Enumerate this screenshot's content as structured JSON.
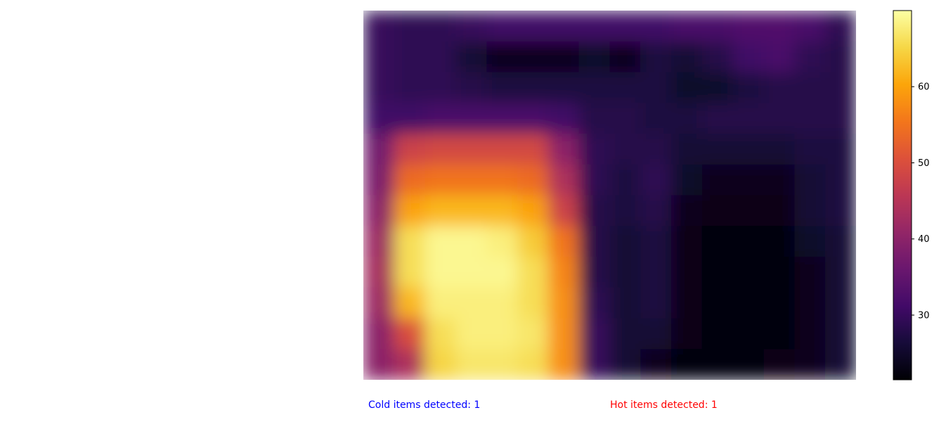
{
  "chart_data": {
    "type": "heatmap",
    "title": "",
    "xlabel": "",
    "ylabel": "",
    "colormap": "inferno",
    "value_range": [
      21.5,
      70
    ],
    "colorbar": {
      "ticks": [
        30,
        40,
        50,
        60
      ],
      "tick_labels": [
        "30",
        "40",
        "50",
        "60"
      ]
    },
    "grid": false,
    "axes_visible": false,
    "rows": 12,
    "cols": 16,
    "values": [
      [
        30,
        29,
        29,
        30,
        31,
        31,
        31,
        31,
        31,
        31,
        32,
        32,
        33,
        33,
        32,
        29
      ],
      [
        30,
        29,
        29,
        26,
        24,
        24,
        24,
        25,
        24,
        27,
        26,
        28,
        31,
        32,
        29,
        28
      ],
      [
        30,
        29,
        29,
        28,
        27,
        27,
        27,
        27,
        27,
        27,
        25,
        25,
        27,
        28,
        28,
        28
      ],
      [
        31,
        31,
        32,
        32,
        32,
        32,
        31,
        28,
        28,
        27,
        27,
        28,
        28,
        28,
        28,
        28
      ],
      [
        37,
        48,
        49,
        49,
        49,
        49,
        40,
        29,
        28,
        28,
        26,
        26,
        26,
        26,
        27,
        27
      ],
      [
        38,
        54,
        55,
        55,
        55,
        54,
        44,
        29,
        27,
        29,
        25,
        24,
        24,
        24,
        26,
        27
      ],
      [
        40,
        60,
        62,
        62,
        62,
        60,
        48,
        28,
        27,
        28,
        24,
        23,
        23,
        23,
        26,
        27
      ],
      [
        42,
        66,
        69,
        69,
        68,
        64,
        55,
        28,
        26,
        27,
        23,
        22,
        22,
        22,
        25,
        26
      ],
      [
        43,
        66,
        69,
        69,
        69,
        66,
        57,
        28,
        26,
        27,
        23,
        22,
        22,
        22,
        24,
        26
      ],
      [
        42,
        62,
        68,
        68,
        68,
        66,
        58,
        29,
        26,
        27,
        23,
        22,
        22,
        22,
        24,
        26
      ],
      [
        40,
        50,
        66,
        68,
        68,
        67,
        58,
        30,
        26,
        26,
        23,
        22,
        22,
        22,
        24,
        26
      ],
      [
        40,
        44,
        65,
        67,
        67,
        66,
        58,
        30,
        26,
        24,
        22,
        22,
        22,
        23,
        24,
        26
      ]
    ]
  },
  "status": {
    "cold_label": "Cold items detected: 1",
    "hot_label": "Hot items detected: 1",
    "cold_color": "#0000ff",
    "hot_color": "#ff0000"
  }
}
